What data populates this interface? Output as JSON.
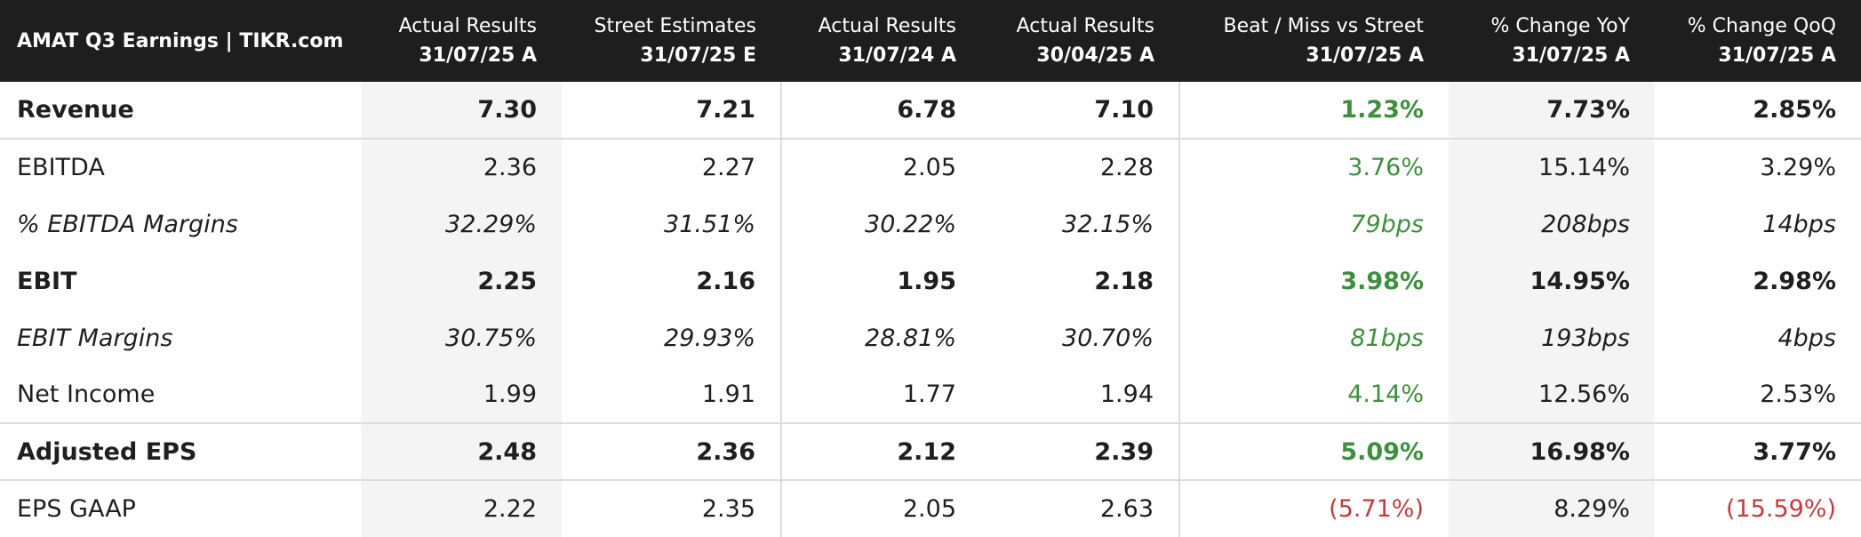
{
  "title": "AMAT Q3 Earnings | TIKR.com",
  "columns": [
    {
      "label": "Actual Results",
      "date": "31/07/25 A"
    },
    {
      "label": "Street Estimates",
      "date": "31/07/25 E"
    },
    {
      "label": "Actual Results",
      "date": "31/07/24 A"
    },
    {
      "label": "Actual Results",
      "date": "30/04/25 A"
    },
    {
      "label": "Beat / Miss vs Street",
      "date": "31/07/25 A"
    },
    {
      "label": "% Change YoY",
      "date": "31/07/25 A"
    },
    {
      "label": "% Change QoQ",
      "date": "31/07/25 A"
    }
  ],
  "rows": [
    {
      "label": "Revenue",
      "style": "bold",
      "values": [
        "7.30",
        "7.21",
        "6.78",
        "7.10",
        "1.23%",
        "7.73%",
        "2.85%"
      ],
      "beat_status": "positive",
      "qoq_status": "neutral"
    },
    {
      "label": "EBITDA",
      "style": "normal",
      "values": [
        "2.36",
        "2.27",
        "2.05",
        "2.28",
        "3.76%",
        "15.14%",
        "3.29%"
      ],
      "beat_status": "positive",
      "qoq_status": "neutral"
    },
    {
      "label": "% EBITDA Margins",
      "style": "italic",
      "values": [
        "32.29%",
        "31.51%",
        "30.22%",
        "32.15%",
        "79bps",
        "208bps",
        "14bps"
      ],
      "beat_status": "positive",
      "qoq_status": "neutral"
    },
    {
      "label": "EBIT",
      "style": "bold",
      "values": [
        "2.25",
        "2.16",
        "1.95",
        "2.18",
        "3.98%",
        "14.95%",
        "2.98%"
      ],
      "beat_status": "positive",
      "qoq_status": "neutral"
    },
    {
      "label": "EBIT Margins",
      "style": "italic",
      "values": [
        "30.75%",
        "29.93%",
        "28.81%",
        "30.70%",
        "81bps",
        "193bps",
        "4bps"
      ],
      "beat_status": "positive",
      "qoq_status": "neutral"
    },
    {
      "label": "Net Income",
      "style": "normal",
      "values": [
        "1.99",
        "1.91",
        "1.77",
        "1.94",
        "4.14%",
        "12.56%",
        "2.53%"
      ],
      "beat_status": "positive",
      "qoq_status": "neutral"
    },
    {
      "label": "Adjusted EPS",
      "style": "bold",
      "values": [
        "2.48",
        "2.36",
        "2.12",
        "2.39",
        "5.09%",
        "16.98%",
        "3.77%"
      ],
      "beat_status": "positive",
      "qoq_status": "neutral"
    },
    {
      "label": "EPS GAAP",
      "style": "normal",
      "values": [
        "2.22",
        "2.35",
        "2.05",
        "2.63",
        "(5.71%)",
        "8.29%",
        "(15.59%)"
      ],
      "beat_status": "negative",
      "qoq_status": "negative"
    }
  ],
  "colors": {
    "header_bg": "#1e1e1e",
    "positive": "#3e8f3e",
    "negative": "#c43b3b",
    "shaded_column": "#f4f4f4",
    "divider": "#dcdcdc"
  }
}
